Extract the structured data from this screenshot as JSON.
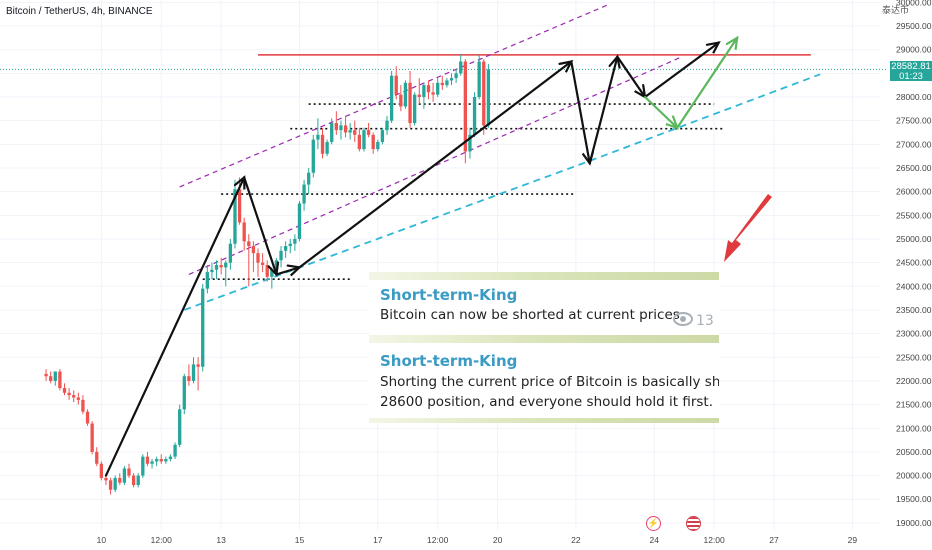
{
  "header": {
    "title": "Bitcoin / TetherUS, 4h, BINANCE",
    "currency": "泰达币"
  },
  "price_badge": {
    "price": "28582.81",
    "countdown": "01:23"
  },
  "events": [
    {
      "name": "flash-event-icon",
      "glyph": "⚡",
      "color": "#e8426a"
    },
    {
      "name": "us-flag-event-icon",
      "glyph": "●",
      "color": "#d33d4a"
    }
  ],
  "messages": [
    {
      "author": "Short-term-King",
      "text": "Bitcoin can now be shorted at current prices",
      "views": "13"
    },
    {
      "author": "Short-term-King",
      "text_line1": "Shorting the current price of Bitcoin is basically shortir",
      "text_line2": "28600 position, and everyone should hold it first."
    }
  ],
  "colors": {
    "up": "#26a69a",
    "down": "#ef5350",
    "resistance": "#e0393e",
    "channel": "#9c27b0",
    "support": "#2fb8d6",
    "arrow": "#111111",
    "scenario_green": "#5cb85c",
    "callout": "#e0393e"
  },
  "chart_data": {
    "type": "candlestick",
    "title": "Bitcoin / TetherUS, 4h, BINANCE",
    "y_axis": {
      "range": [
        18850,
        30050
      ],
      "ticks": [
        19000,
        19500,
        20000,
        20500,
        21000,
        21500,
        22000,
        22500,
        23000,
        23500,
        24000,
        24500,
        25000,
        25500,
        26000,
        26500,
        27000,
        27500,
        28000,
        28500,
        29000,
        29500,
        30000
      ]
    },
    "x_axis": {
      "range": [
        -10,
        181
      ],
      "ticks": [
        {
          "label": "10",
          "x": 12
        },
        {
          "label": "12:00",
          "x": 25
        },
        {
          "label": "13",
          "x": 38
        },
        {
          "label": "15",
          "x": 55
        },
        {
          "label": "17",
          "x": 72
        },
        {
          "label": "12:00",
          "x": 85
        },
        {
          "label": "20",
          "x": 98
        },
        {
          "label": "22",
          "x": 115
        },
        {
          "label": "24",
          "x": 132
        },
        {
          "label": "12:00",
          "x": 145
        },
        {
          "label": "27",
          "x": 158
        },
        {
          "label": "29",
          "x": 175
        }
      ]
    },
    "candles_ohlc": [
      [
        22150,
        22250,
        22000,
        22100
      ],
      [
        22100,
        22200,
        21950,
        22000
      ],
      [
        22000,
        22200,
        21900,
        22200
      ],
      [
        22200,
        22250,
        21800,
        21850
      ],
      [
        21850,
        21950,
        21700,
        21750
      ],
      [
        21750,
        21850,
        21600,
        21700
      ],
      [
        21700,
        21800,
        21550,
        21650
      ],
      [
        21650,
        21750,
        21500,
        21600
      ],
      [
        21600,
        21700,
        21300,
        21350
      ],
      [
        21350,
        21400,
        21050,
        21100
      ],
      [
        21100,
        21150,
        20450,
        20500
      ],
      [
        20500,
        20600,
        20200,
        20250
      ],
      [
        20250,
        20300,
        19900,
        19950
      ],
      [
        19950,
        20050,
        19800,
        19900
      ],
      [
        19900,
        19950,
        19600,
        19700
      ],
      [
        19700,
        20000,
        19650,
        19950
      ],
      [
        19950,
        20050,
        19800,
        19850
      ],
      [
        19850,
        20200,
        19800,
        20150
      ],
      [
        20150,
        20250,
        19950,
        20000
      ],
      [
        20000,
        20050,
        19750,
        19800
      ],
      [
        19800,
        20050,
        19750,
        20000
      ],
      [
        20000,
        20450,
        19950,
        20400
      ],
      [
        20400,
        20500,
        20200,
        20250
      ],
      [
        20250,
        20350,
        20150,
        20300
      ],
      [
        20300,
        20400,
        20200,
        20350
      ],
      [
        20350,
        20450,
        20250,
        20300
      ],
      [
        20300,
        20400,
        20250,
        20350
      ],
      [
        20350,
        20450,
        20300,
        20400
      ],
      [
        20400,
        20700,
        20350,
        20650
      ],
      [
        20650,
        21500,
        20600,
        21400
      ],
      [
        21400,
        22150,
        21300,
        22100
      ],
      [
        22100,
        22350,
        21900,
        22000
      ],
      [
        22000,
        22500,
        21950,
        22350
      ],
      [
        22350,
        22500,
        21800,
        22300
      ],
      [
        22300,
        24050,
        22200,
        23950
      ],
      [
        23950,
        24450,
        23850,
        24300
      ],
      [
        24300,
        24500,
        24150,
        24350
      ],
      [
        24350,
        24550,
        24150,
        24450
      ],
      [
        24450,
        24600,
        24250,
        24400
      ],
      [
        24400,
        24550,
        24000,
        24500
      ],
      [
        24500,
        25000,
        24350,
        24900
      ],
      [
        24900,
        26250,
        24800,
        26050
      ],
      [
        26050,
        26300,
        25300,
        25350
      ],
      [
        25350,
        25450,
        24750,
        24950
      ],
      [
        24950,
        25100,
        24000,
        24850
      ],
      [
        24850,
        24950,
        24300,
        24700
      ],
      [
        24700,
        24800,
        24200,
        24500
      ],
      [
        24500,
        24700,
        24300,
        24450
      ],
      [
        24450,
        24550,
        24100,
        24200
      ],
      [
        24200,
        24400,
        23950,
        24350
      ],
      [
        24350,
        24600,
        24250,
        24550
      ],
      [
        24550,
        24850,
        24400,
        24750
      ],
      [
        24750,
        24950,
        24600,
        24850
      ],
      [
        24850,
        25000,
        24700,
        24900
      ],
      [
        24900,
        25100,
        24750,
        25000
      ],
      [
        25000,
        25800,
        24950,
        25750
      ],
      [
        25750,
        26250,
        25600,
        26150
      ],
      [
        26150,
        26500,
        25950,
        26400
      ],
      [
        26400,
        27200,
        26300,
        27100
      ],
      [
        27100,
        27550,
        26900,
        27200
      ],
      [
        27200,
        27350,
        26700,
        26800
      ],
      [
        26800,
        27100,
        26750,
        27050
      ],
      [
        27050,
        27550,
        27000,
        27450
      ],
      [
        27450,
        27700,
        27200,
        27300
      ],
      [
        27300,
        27500,
        27100,
        27400
      ],
      [
        27400,
        27600,
        27150,
        27250
      ],
      [
        27250,
        27450,
        27100,
        27300
      ],
      [
        27300,
        27500,
        27050,
        27200
      ],
      [
        27200,
        27350,
        26850,
        26900
      ],
      [
        26900,
        27350,
        26850,
        27300
      ],
      [
        27300,
        27450,
        27150,
        27200
      ],
      [
        27200,
        27250,
        26800,
        26900
      ],
      [
        26900,
        27100,
        26850,
        27050
      ],
      [
        27050,
        27350,
        27000,
        27300
      ],
      [
        27300,
        27600,
        27200,
        27500
      ],
      [
        27500,
        28550,
        27450,
        28450
      ],
      [
        28450,
        28650,
        27950,
        28050
      ],
      [
        28050,
        28250,
        27700,
        27800
      ],
      [
        27800,
        28350,
        27750,
        28300
      ],
      [
        28300,
        28550,
        27350,
        27450
      ],
      [
        27450,
        28100,
        27400,
        28050
      ],
      [
        28050,
        28400,
        27850,
        28000
      ],
      [
        28000,
        28300,
        27750,
        28250
      ],
      [
        28250,
        28350,
        27950,
        28100
      ],
      [
        28100,
        28300,
        27900,
        28050
      ],
      [
        28050,
        28400,
        28000,
        28300
      ],
      [
        28300,
        28450,
        28150,
        28250
      ],
      [
        28250,
        28400,
        28200,
        28350
      ],
      [
        28350,
        28500,
        28250,
        28400
      ],
      [
        28400,
        28600,
        28300,
        28500
      ],
      [
        28500,
        28900,
        28450,
        28750
      ],
      [
        28750,
        28800,
        26600,
        26850
      ],
      [
        26850,
        27350,
        26700,
        27200
      ],
      [
        27200,
        28100,
        27150,
        28000
      ],
      [
        28000,
        28900,
        27950,
        28750
      ],
      [
        28750,
        28800,
        27200,
        27400
      ],
      [
        27400,
        28700,
        27350,
        28583
      ]
    ],
    "annotations": {
      "resistance": 28890,
      "horizontal_levels": [
        {
          "x": [
            34,
            66
          ],
          "y": 24150
        },
        {
          "x": [
            38,
            115
          ],
          "y": 25950
        },
        {
          "x": [
            57,
            145
          ],
          "y": 27850
        },
        {
          "x": [
            53,
            147
          ],
          "y": 27330
        }
      ],
      "trend_arrows": [
        [
          [
            13,
            20000
          ],
          [
            43,
            26300
          ]
        ],
        [
          [
            43,
            26300
          ],
          [
            50,
            24250
          ]
        ],
        [
          [
            50,
            24250
          ],
          [
            55,
            24400
          ]
        ],
        [
          [
            55,
            24400
          ],
          [
            114,
            28750
          ]
        ],
        [
          [
            114,
            28750
          ],
          [
            118,
            26600
          ]
        ],
        [
          [
            118,
            26600
          ],
          [
            124,
            28850
          ]
        ],
        [
          [
            124,
            28850
          ],
          [
            130,
            28000
          ]
        ],
        [
          [
            130,
            28000
          ],
          [
            146,
            29150
          ]
        ]
      ],
      "scenario_arrow": [
        [
          [
            130,
            28000
          ],
          [
            137,
            27350
          ]
        ],
        [
          [
            137,
            27350
          ],
          [
            150,
            29250
          ]
        ]
      ]
    }
  }
}
